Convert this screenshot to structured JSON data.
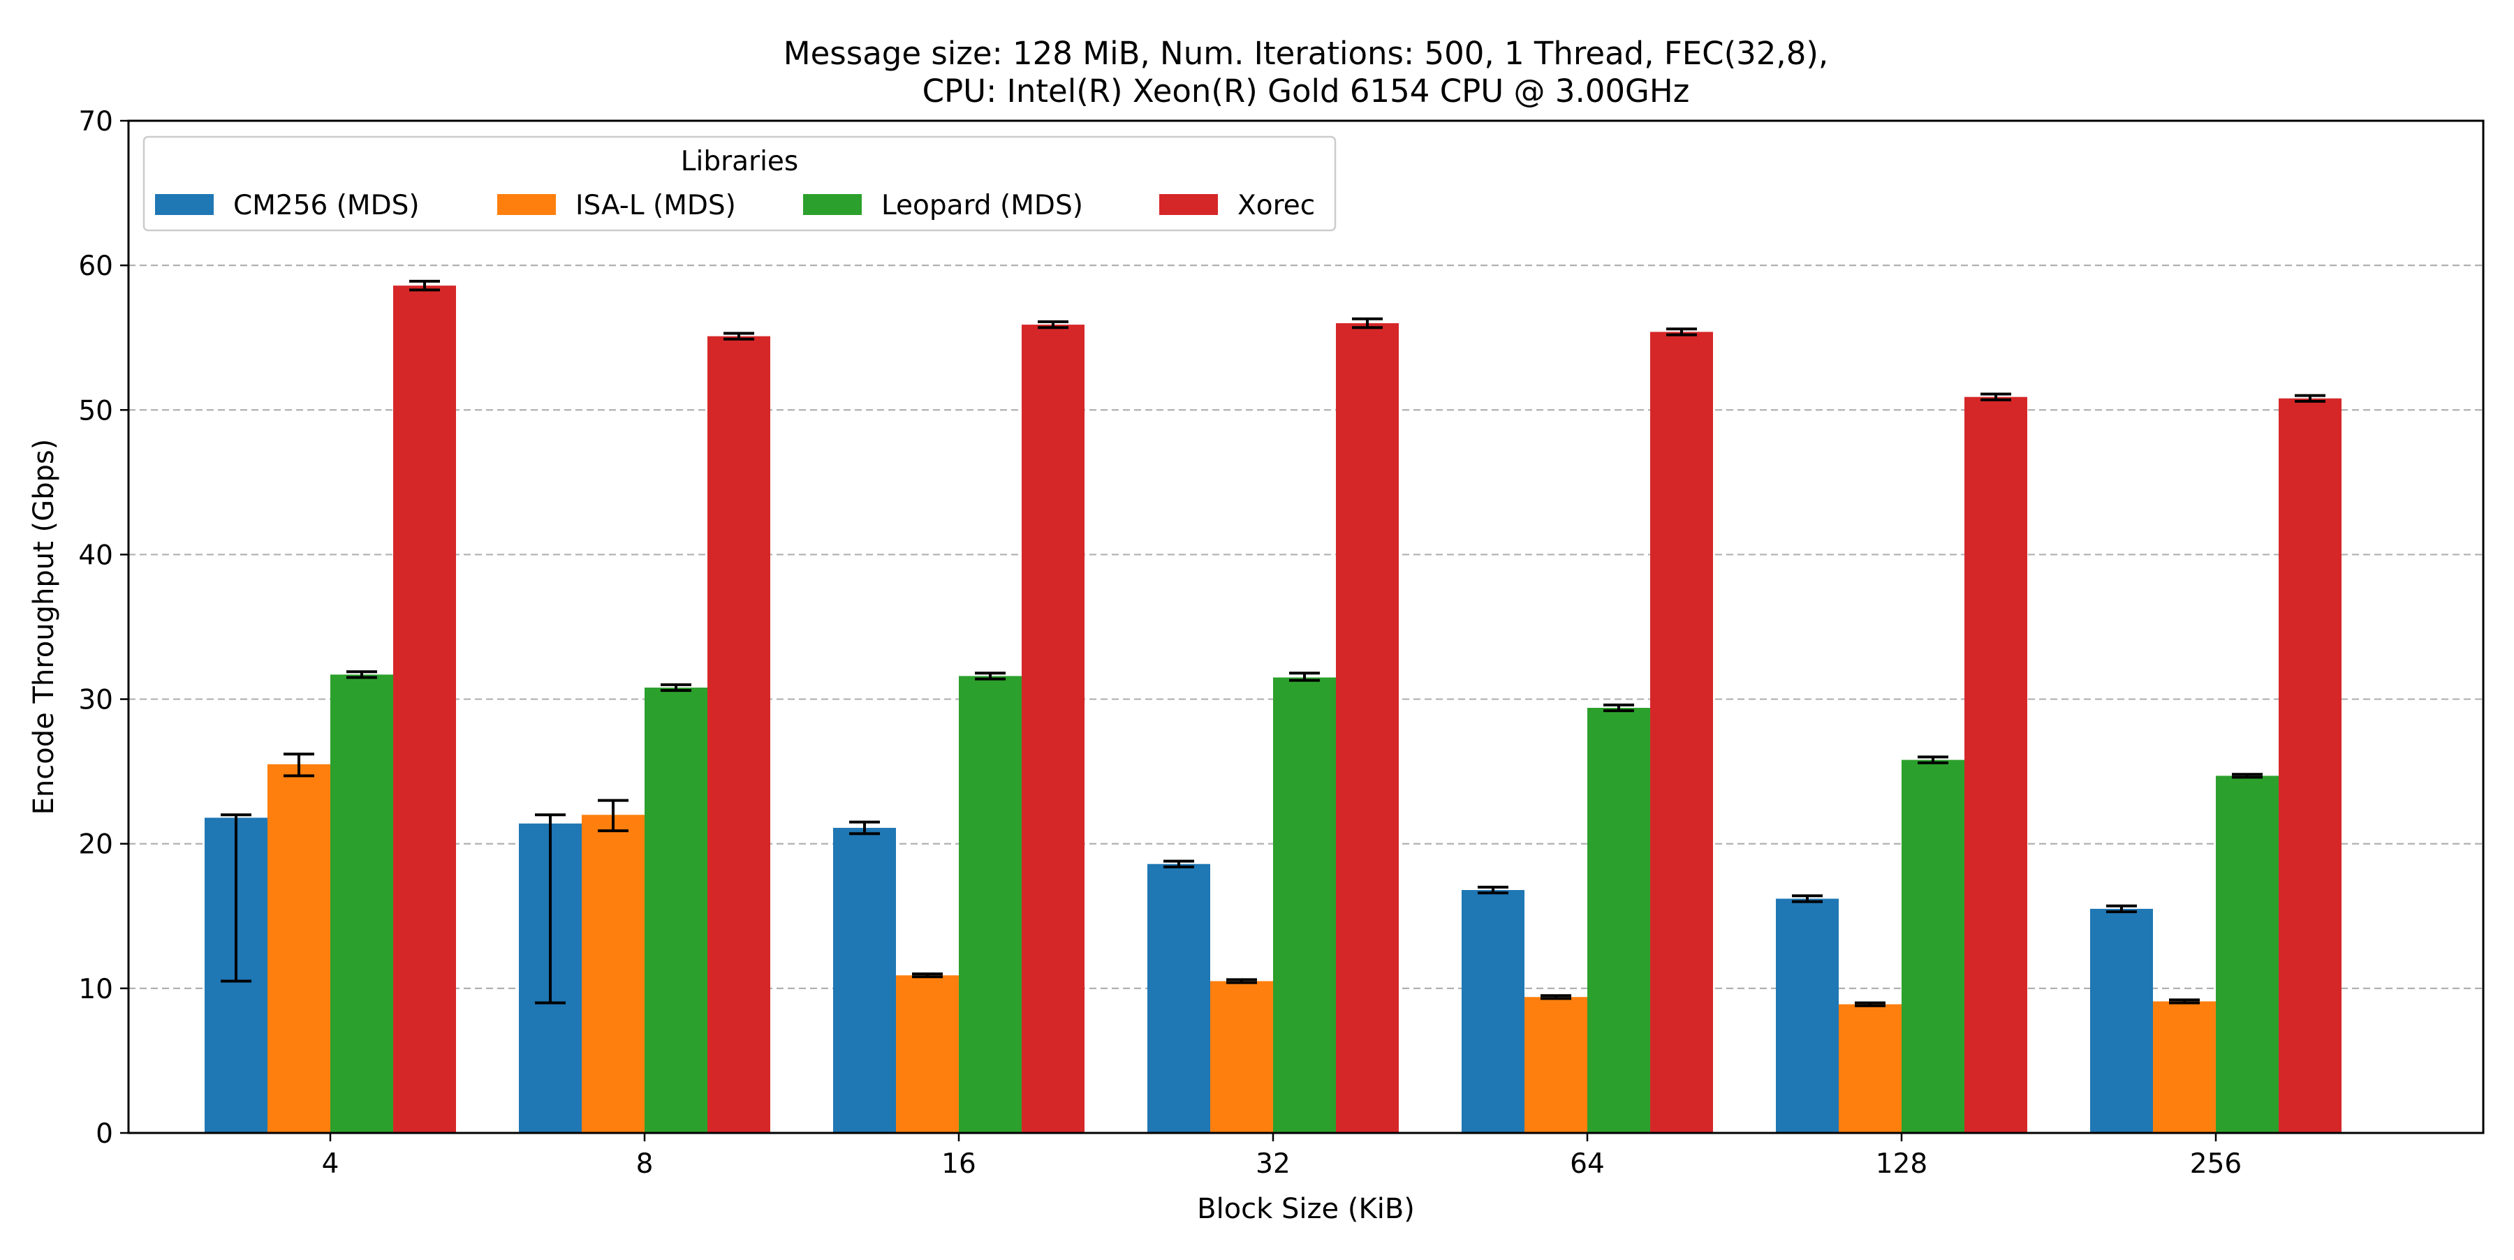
{
  "chart_data": {
    "type": "bar",
    "title": [
      "Message size: 128 MiB, Num. Iterations: 500, 1 Thread, FEC(32,8),",
      "CPU: Intel(R) Xeon(R) Gold 6154 CPU @ 3.00GHz"
    ],
    "xlabel": "Block Size (KiB)",
    "ylabel": "Encode Throughput (Gbps)",
    "ylim": [
      0,
      70
    ],
    "yticks": [
      0,
      10,
      20,
      30,
      40,
      50,
      60,
      70
    ],
    "grid": "y-dashed",
    "categories": [
      "4",
      "8",
      "16",
      "32",
      "64",
      "128",
      "256"
    ],
    "legend": {
      "title": "Libraries",
      "placement": "top-left",
      "columns": 4
    },
    "series": [
      {
        "name": "CM256 (MDS)",
        "color": "#1f77b4",
        "values": [
          21.8,
          21.4,
          21.1,
          18.6,
          16.8,
          16.2,
          15.5
        ],
        "err_low": [
          10.5,
          9.0,
          20.7,
          18.4,
          16.6,
          16.0,
          15.3
        ],
        "err_high": [
          22.0,
          22.0,
          21.5,
          18.8,
          17.0,
          16.4,
          15.7
        ]
      },
      {
        "name": "ISA-L (MDS)",
        "color": "#ff7f0e",
        "values": [
          25.5,
          22.0,
          10.9,
          10.5,
          9.4,
          8.9,
          9.1
        ],
        "err_low": [
          24.7,
          20.9,
          10.8,
          10.4,
          9.3,
          8.8,
          9.0
        ],
        "err_high": [
          26.2,
          23.0,
          11.0,
          10.6,
          9.5,
          9.0,
          9.2
        ]
      },
      {
        "name": "Leopard (MDS)",
        "color": "#2ca02c",
        "values": [
          31.7,
          30.8,
          31.6,
          31.5,
          29.4,
          25.8,
          24.7
        ],
        "err_low": [
          31.5,
          30.6,
          31.4,
          31.3,
          29.2,
          25.6,
          24.6
        ],
        "err_high": [
          31.9,
          31.0,
          31.8,
          31.8,
          29.6,
          26.0,
          24.8
        ]
      },
      {
        "name": "Xorec",
        "color": "#d62728",
        "values": [
          58.6,
          55.1,
          55.9,
          56.0,
          55.4,
          50.9,
          50.8
        ],
        "err_low": [
          58.3,
          54.9,
          55.7,
          55.7,
          55.2,
          50.7,
          50.6
        ],
        "err_high": [
          58.9,
          55.3,
          56.1,
          56.3,
          55.6,
          51.1,
          51.0
        ]
      }
    ]
  }
}
